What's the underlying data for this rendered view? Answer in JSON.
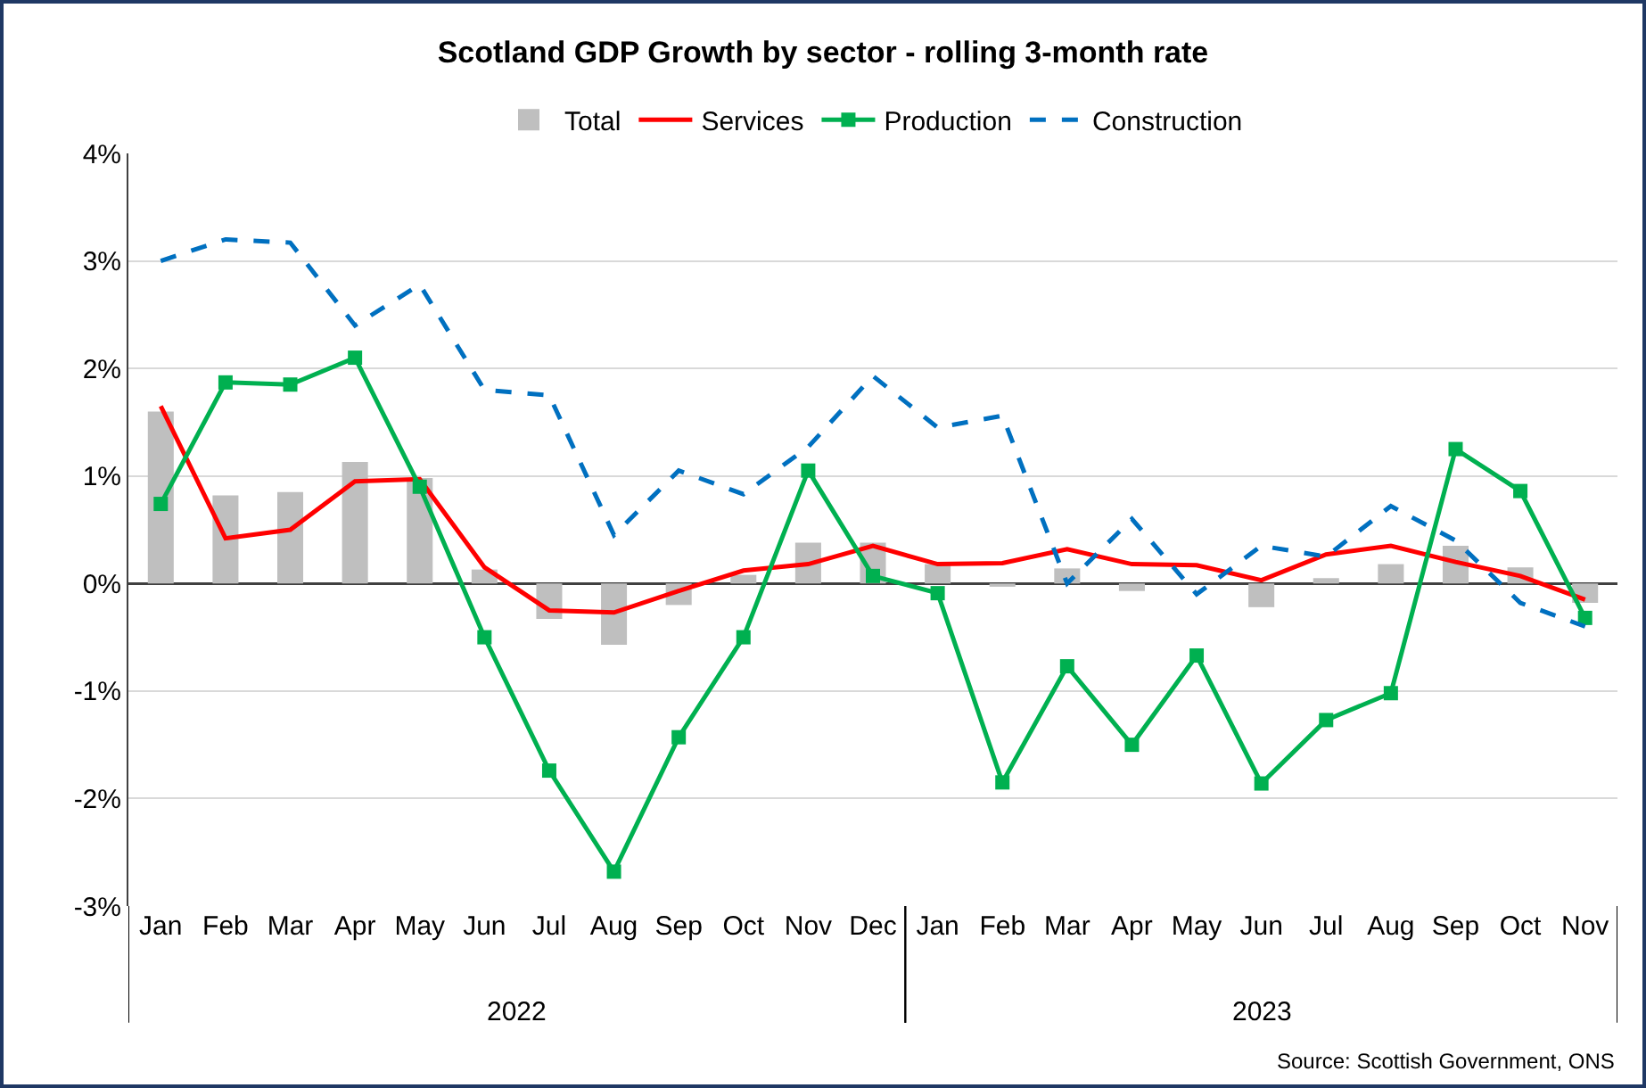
{
  "chart_data": {
    "type": "line",
    "title": "Scotland GDP Growth by sector - rolling 3-month rate",
    "categories": [
      "Jan",
      "Feb",
      "Mar",
      "Apr",
      "May",
      "Jun",
      "Jul",
      "Aug",
      "Sep",
      "Oct",
      "Nov",
      "Dec",
      "Jan",
      "Feb",
      "Mar",
      "Apr",
      "May",
      "Jun",
      "Jul",
      "Aug",
      "Sep",
      "Oct",
      "Nov"
    ],
    "series": [
      {
        "name": "Total",
        "type": "bar",
        "color": "#bfbfbf",
        "values": [
          1.6,
          0.82,
          0.85,
          1.13,
          0.98,
          0.13,
          -0.33,
          -0.57,
          -0.2,
          0.08,
          0.38,
          0.38,
          0.18,
          -0.03,
          0.14,
          -0.07,
          null,
          -0.22,
          0.05,
          0.18,
          0.35,
          0.15,
          -0.18
        ]
      },
      {
        "name": "Services",
        "color": "#ff0000",
        "marker": "none",
        "line_style": "solid",
        "values": [
          1.65,
          0.42,
          0.5,
          0.95,
          0.97,
          0.15,
          -0.25,
          -0.27,
          -0.07,
          0.12,
          0.18,
          0.35,
          0.18,
          0.19,
          0.32,
          0.18,
          0.17,
          0.03,
          0.27,
          0.35,
          0.2,
          0.07,
          -0.15
        ]
      },
      {
        "name": "Production",
        "color": "#00b050",
        "marker": "square",
        "line_style": "solid",
        "values": [
          0.74,
          1.87,
          1.85,
          2.1,
          0.9,
          -0.5,
          -1.74,
          -2.68,
          -1.43,
          -0.5,
          1.05,
          0.07,
          -0.09,
          -1.85,
          -0.77,
          -1.5,
          -0.67,
          -1.86,
          -1.27,
          -1.02,
          1.25,
          0.86,
          -0.32
        ]
      },
      {
        "name": "Construction",
        "color": "#0070c0",
        "marker": "none",
        "line_style": "dashed",
        "values": [
          3.0,
          3.2,
          3.17,
          2.4,
          2.78,
          1.8,
          1.75,
          0.45,
          1.05,
          0.83,
          1.27,
          1.93,
          1.45,
          1.56,
          0.0,
          0.6,
          -0.1,
          0.35,
          0.25,
          0.72,
          0.4,
          -0.18,
          -0.4
        ]
      }
    ],
    "ylim": [
      -3,
      4
    ],
    "yticks": [
      {
        "value": -3,
        "label": "-3%"
      },
      {
        "value": -2,
        "label": "-2%"
      },
      {
        "value": -1,
        "label": "-1%"
      },
      {
        "value": 0,
        "label": "0%"
      },
      {
        "value": 1,
        "label": "1%"
      },
      {
        "value": 2,
        "label": "2%"
      },
      {
        "value": 3,
        "label": "3%"
      },
      {
        "value": 4,
        "label": "4%"
      }
    ],
    "grid": "y",
    "legend": "top",
    "annotations": [
      "2022",
      "2023",
      "Source: Scottish Government, ONS"
    ]
  }
}
